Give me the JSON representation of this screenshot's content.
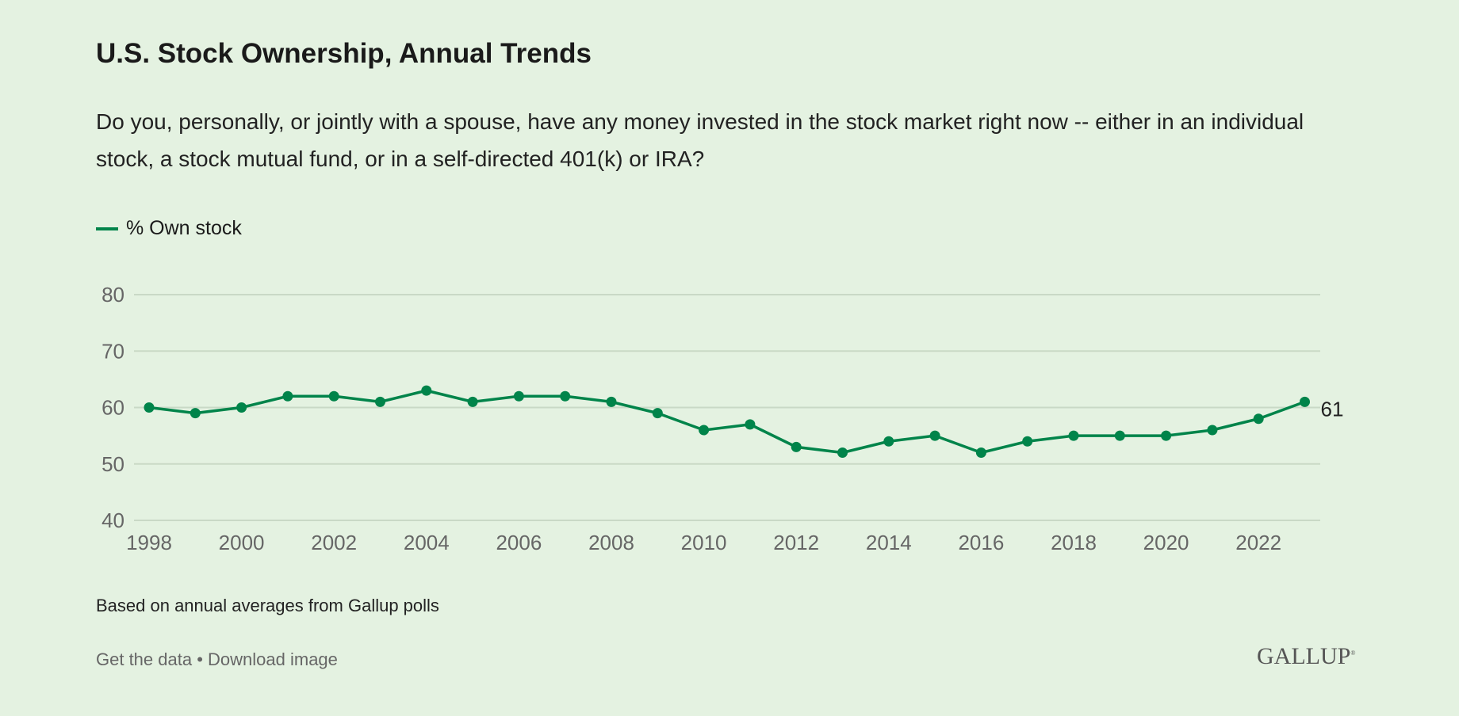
{
  "chart_data": {
    "type": "line",
    "title": "U.S. Stock Ownership, Annual Trends",
    "subtitle": "Do you, personally, or jointly with a spouse, have any money invested in the stock market right now -- either in an individual stock, a stock mutual fund, or in a self-directed 401(k) or IRA?",
    "x": [
      1998,
      1999,
      2000,
      2001,
      2002,
      2003,
      2004,
      2005,
      2006,
      2007,
      2008,
      2009,
      2010,
      2011,
      2012,
      2013,
      2014,
      2015,
      2016,
      2017,
      2018,
      2019,
      2020,
      2021,
      2022,
      2023
    ],
    "series": [
      {
        "name": "% Own stock",
        "color": "#00844a",
        "values": [
          60,
          59,
          60,
          62,
          62,
          61,
          63,
          61,
          62,
          62,
          61,
          59,
          56,
          57,
          53,
          52,
          54,
          55,
          52,
          54,
          55,
          55,
          55,
          56,
          58,
          61
        ]
      }
    ],
    "end_label": "61",
    "ylim": [
      40,
      80
    ],
    "yticks": [
      "40",
      "50",
      "60",
      "70",
      "80"
    ],
    "xticks": [
      "1998",
      "2000",
      "2002",
      "2004",
      "2006",
      "2008",
      "2010",
      "2012",
      "2014",
      "2016",
      "2018",
      "2020",
      "2022"
    ],
    "grid": true,
    "legend_position": "top-left"
  },
  "note": "Based on annual averages from Gallup polls",
  "footer": {
    "get_data": "Get the data",
    "separator": " • ",
    "download": "Download image"
  },
  "logo": "GALLUP"
}
